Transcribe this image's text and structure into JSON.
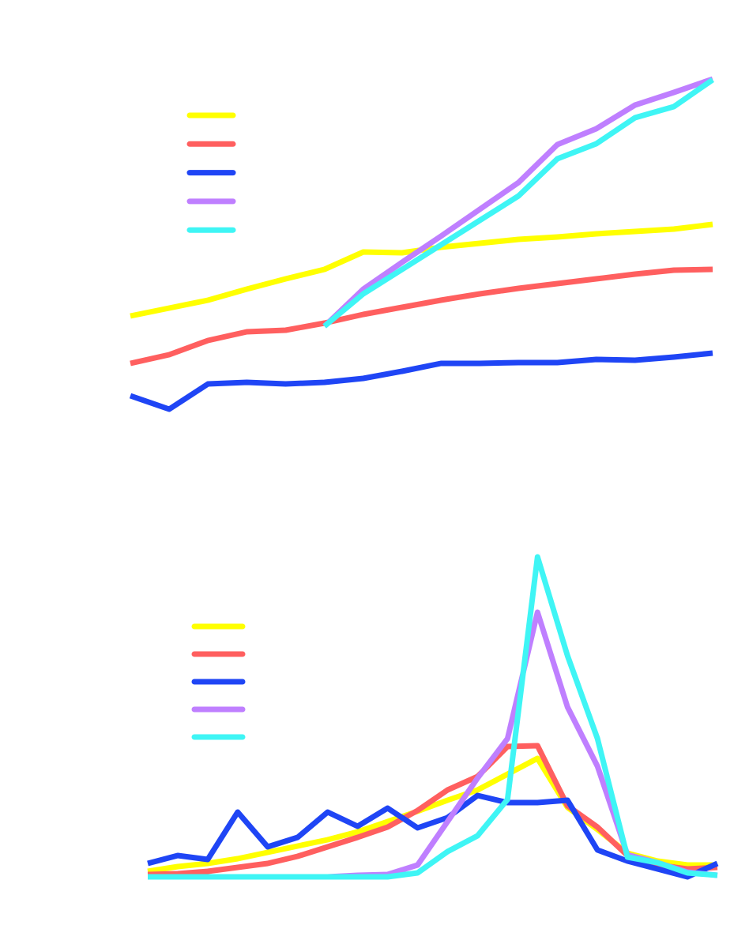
{
  "chart_data": [
    {
      "type": "line",
      "categories": [
        null,
        null,
        null,
        null,
        null,
        null,
        null,
        null,
        null,
        null,
        null,
        null,
        null,
        null,
        null,
        null
      ],
      "ylim": [
        0,
        480
      ],
      "series": [
        {
          "color": "#ffff00",
          "values": [
            160,
            170,
            180,
            194,
            207,
            219,
            241,
            240,
            247,
            252,
            257,
            260,
            264,
            267,
            270,
            276
          ]
        },
        {
          "color": "#ff5f5f",
          "values": [
            100,
            111,
            129,
            140,
            142,
            151,
            162,
            171,
            180,
            188,
            195,
            201,
            207,
            213,
            218,
            219
          ]
        },
        {
          "color": "#1f45f5",
          "values": [
            59,
            42,
            74,
            76,
            74,
            76,
            81,
            90,
            100,
            100,
            101,
            101,
            105,
            104,
            108,
            113
          ]
        },
        {
          "color": "#bf7fff",
          "values": [
            null,
            null,
            null,
            null,
            null,
            147,
            194,
            228,
            261,
            295,
            329,
            377,
            397,
            427,
            443,
            460
          ]
        },
        {
          "color": "#3ff5f5",
          "values": [
            null,
            null,
            null,
            null,
            null,
            147,
            188,
            219,
            250,
            281,
            312,
            359,
            378,
            411,
            425,
            459
          ]
        }
      ]
    },
    {
      "type": "line",
      "categories": [
        null,
        null,
        null,
        null,
        null,
        null,
        null,
        null,
        null,
        null,
        null,
        null,
        null,
        null,
        null,
        null,
        null,
        null,
        null,
        null
      ],
      "ylim": [
        0,
        410
      ],
      "series": [
        {
          "color": "#ffff00",
          "values": [
            7,
            13,
            17,
            23,
            31,
            39,
            47,
            57,
            70,
            83,
            97,
            110,
            130,
            150,
            88,
            60,
            30,
            20,
            15,
            15
          ]
        },
        {
          "color": "#ff5f5f",
          "values": [
            3,
            4,
            7,
            12,
            17,
            26,
            38,
            50,
            63,
            84,
            110,
            127,
            165,
            166,
            90,
            63,
            27,
            15,
            10,
            12
          ]
        },
        {
          "color": "#1f45f5",
          "values": [
            17,
            27,
            22,
            82,
            38,
            50,
            82,
            64,
            87,
            62,
            75,
            103,
            94,
            94,
            97,
            34,
            20,
            10,
            0,
            17
          ]
        },
        {
          "color": "#bf7fff",
          "values": [
            0,
            0,
            0,
            0,
            0,
            0,
            0,
            2,
            3,
            15,
            70,
            125,
            175,
            335,
            215,
            140,
            28,
            18,
            6,
            2
          ]
        },
        {
          "color": "#3ff5f5",
          "values": [
            0,
            0,
            0,
            0,
            0,
            0,
            0,
            0,
            0,
            5,
            32,
            52,
            98,
            405,
            280,
            175,
            25,
            18,
            5,
            2
          ]
        }
      ]
    }
  ]
}
